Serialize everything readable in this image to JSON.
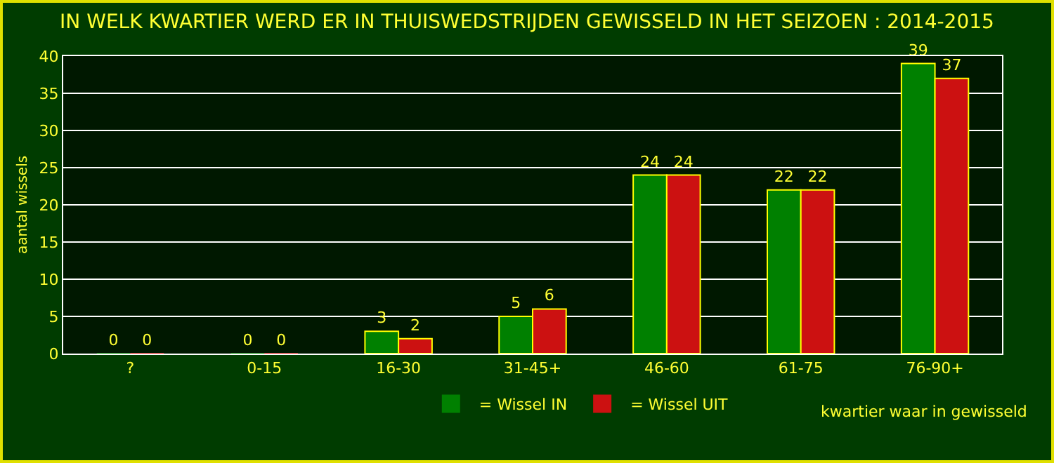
{
  "chart_data": {
    "type": "bar",
    "title": "IN WELK KWARTIER WERD ER IN THUISWEDSTRIJDEN GEWISSELD IN HET SEIZOEN : 2014-2015",
    "xlabel": "kwartier waar in gewisseld",
    "ylabel": "aantal wissels",
    "categories": [
      "?",
      "0-15",
      "16-30",
      "31-45+",
      "46-60",
      "61-75",
      "76-90+"
    ],
    "series": [
      {
        "name": "= Wissel IN",
        "color": "#008000",
        "values": [
          0,
          0,
          3,
          5,
          24,
          22,
          39
        ]
      },
      {
        "name": "= Wissel UIT",
        "color": "#cc1111",
        "values": [
          0,
          0,
          2,
          6,
          24,
          22,
          37
        ]
      }
    ],
    "ylim": [
      0,
      40
    ],
    "yticks": [
      0,
      5,
      10,
      15,
      20,
      25,
      30,
      35,
      40
    ],
    "grid": "y",
    "legend": "bottom",
    "data_labels": true
  }
}
